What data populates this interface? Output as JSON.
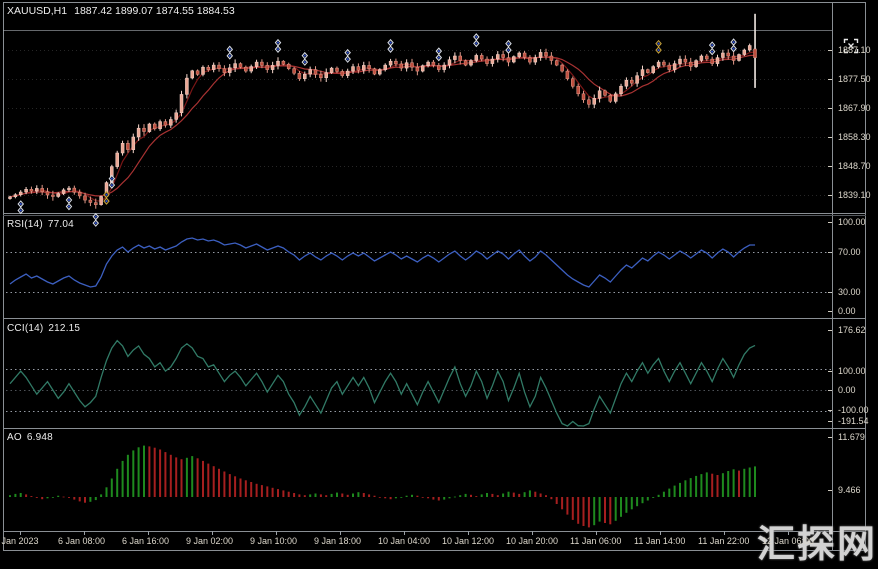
{
  "title_bar": {
    "symbol_period": "XAUUSD,H1",
    "ohlc": "1887.42 1899.07 1874.55 1884.53"
  },
  "watermark_text": "汇探网",
  "colors": {
    "background": "#000000",
    "frame": "#8a8f94",
    "axis_text": "#ded9cd",
    "candle_up_fill": "#eba795",
    "candle_up_stroke": "#f7d8cd",
    "candle_down_fill": "#bf4f3f",
    "candle_down_stroke": "#e09a8a",
    "ma_fast": "#7a1616",
    "ma_slow": "#a83232",
    "rsi_line": "#3c5fc0",
    "cci_line": "#317a66",
    "ao_up": "#1e8a1e",
    "ao_down": "#a61f1f",
    "level_line": "#aeb6c0",
    "object_line": "#aab0b6",
    "marker_silver": "#d9dee8",
    "marker_gold": "#caa43a",
    "marker_dot": "#2b4fd4"
  },
  "chart_data": [
    {
      "type": "candlestick",
      "panel": "price",
      "symbol": "XAUUSD",
      "timeframe": "H1",
      "ohlc_current": {
        "open": 1887.42,
        "high": 1899.07,
        "low": 1874.55,
        "close": 1884.53
      },
      "y_axis_labels": [
        "1887.10",
        "1877.50",
        "1867.90",
        "1858.30",
        "1848.70",
        "1839.10"
      ],
      "x_axis_labels": [
        "5 Jan 2023",
        "6 Jan 08:00",
        "6 Jan 16:00",
        "9 Jan 02:00",
        "9 Jan 10:00",
        "9 Jan 18:00",
        "10 Jan 04:00",
        "10 Jan 12:00",
        "10 Jan 20:00",
        "11 Jan 06:00",
        "11 Jan 14:00",
        "11 Jan 22:00",
        "12 Jan 06:00"
      ],
      "overlays": [
        "moving-average-fast",
        "moving-average-slow"
      ],
      "closes": [
        1838.5,
        1839.2,
        1840.1,
        1841.0,
        1840.4,
        1841.3,
        1840.2,
        1839.1,
        1838.6,
        1839.6,
        1840.8,
        1841.4,
        1840.0,
        1838.8,
        1837.4,
        1836.6,
        1835.9,
        1838.6,
        1843.2,
        1848.5,
        1853.0,
        1856.2,
        1854.1,
        1858.3,
        1861.2,
        1860.1,
        1862.6,
        1861.0,
        1863.4,
        1862.2,
        1864.1,
        1866.3,
        1872.4,
        1877.8,
        1880.2,
        1879.0,
        1881.4,
        1880.6,
        1882.1,
        1880.9,
        1879.6,
        1881.2,
        1882.6,
        1881.4,
        1880.1,
        1881.6,
        1883.1,
        1882.0,
        1880.6,
        1882.0,
        1883.4,
        1882.4,
        1880.9,
        1879.4,
        1877.6,
        1879.1,
        1880.6,
        1879.0,
        1877.9,
        1879.6,
        1881.1,
        1880.0,
        1878.6,
        1880.1,
        1881.6,
        1880.4,
        1882.0,
        1880.9,
        1879.1,
        1880.6,
        1882.1,
        1883.4,
        1882.5,
        1881.1,
        1882.9,
        1881.4,
        1880.1,
        1881.9,
        1883.1,
        1882.0,
        1880.6,
        1882.1,
        1883.9,
        1885.1,
        1883.6,
        1882.1,
        1883.6,
        1885.3,
        1884.1,
        1882.6,
        1884.1,
        1885.6,
        1884.6,
        1883.1,
        1884.9,
        1886.1,
        1884.6,
        1883.1,
        1884.6,
        1886.3,
        1885.1,
        1883.6,
        1882.1,
        1880.1,
        1877.6,
        1875.1,
        1872.6,
        1870.6,
        1869.1,
        1871.1,
        1873.6,
        1872.1,
        1870.1,
        1872.6,
        1875.1,
        1877.1,
        1876.1,
        1878.6,
        1880.6,
        1879.6,
        1881.6,
        1883.1,
        1882.1,
        1880.6,
        1882.6,
        1884.1,
        1883.1,
        1881.6,
        1883.6,
        1885.1,
        1884.1,
        1882.6,
        1884.6,
        1886.1,
        1885.1,
        1883.6,
        1885.6,
        1887.1,
        1888.6,
        1884.53
      ],
      "last_bar": {
        "open": 1887.42,
        "high": 1899.07,
        "low": 1874.55,
        "close": 1884.53
      },
      "signal_markers": [
        {
          "i": 2,
          "pos": "below",
          "style": "silver"
        },
        {
          "i": 11,
          "pos": "below",
          "style": "silver"
        },
        {
          "i": 16,
          "pos": "below",
          "style": "silver"
        },
        {
          "i": 18,
          "pos": "below",
          "style": "gold"
        },
        {
          "i": 19,
          "pos": "below",
          "style": "silver"
        },
        {
          "i": 41,
          "pos": "above",
          "style": "silver"
        },
        {
          "i": 50,
          "pos": "above",
          "style": "silver"
        },
        {
          "i": 55,
          "pos": "above",
          "style": "silver"
        },
        {
          "i": 63,
          "pos": "above",
          "style": "silver"
        },
        {
          "i": 71,
          "pos": "above",
          "style": "silver"
        },
        {
          "i": 80,
          "pos": "above",
          "style": "silver"
        },
        {
          "i": 87,
          "pos": "above",
          "style": "silver"
        },
        {
          "i": 93,
          "pos": "above",
          "style": "silver"
        },
        {
          "i": 121,
          "pos": "above",
          "style": "gold"
        },
        {
          "i": 131,
          "pos": "above",
          "style": "silver"
        },
        {
          "i": 135,
          "pos": "above",
          "style": "silver"
        }
      ]
    },
    {
      "type": "line",
      "name": "RSI(14)",
      "current": "77.04",
      "levels": [
        70,
        30
      ],
      "ylim": [
        0,
        100
      ],
      "y_axis_labels": [
        "100.00",
        "70.00",
        "30.00",
        "0.00"
      ],
      "values": [
        38,
        42,
        45,
        48,
        44,
        46,
        43,
        40,
        38,
        41,
        44,
        46,
        42,
        39,
        37,
        35,
        36,
        45,
        58,
        66,
        72,
        75,
        70,
        74,
        77,
        74,
        76,
        73,
        75,
        72,
        74,
        76,
        80,
        83,
        84,
        82,
        83,
        81,
        82,
        80,
        77,
        78,
        79,
        77,
        74,
        76,
        78,
        75,
        72,
        74,
        76,
        74,
        70,
        67,
        62,
        66,
        69,
        65,
        62,
        66,
        69,
        66,
        62,
        66,
        69,
        66,
        69,
        65,
        61,
        64,
        67,
        70,
        67,
        63,
        66,
        63,
        60,
        64,
        67,
        64,
        60,
        64,
        68,
        71,
        66,
        62,
        66,
        71,
        68,
        63,
        67,
        71,
        68,
        63,
        68,
        72,
        66,
        61,
        65,
        71,
        67,
        62,
        57,
        52,
        47,
        43,
        40,
        37,
        35,
        41,
        47,
        44,
        40,
        46,
        52,
        57,
        54,
        59,
        64,
        61,
        66,
        70,
        67,
        63,
        67,
        71,
        68,
        64,
        68,
        72,
        69,
        64,
        69,
        73,
        70,
        65,
        70,
        74,
        77,
        77.04
      ]
    },
    {
      "type": "line",
      "name": "CCI(14)",
      "current": "212.15",
      "levels": [
        100,
        0,
        -100
      ],
      "y_axis_labels": [
        "176.62",
        "100.00",
        "0.00",
        "-100.00",
        "-191.54"
      ],
      "values": [
        30,
        60,
        90,
        60,
        20,
        -20,
        10,
        40,
        0,
        -40,
        -10,
        30,
        -10,
        -50,
        -80,
        -60,
        -30,
        60,
        140,
        200,
        235,
        210,
        160,
        190,
        210,
        170,
        150,
        110,
        130,
        90,
        110,
        150,
        200,
        220,
        200,
        160,
        150,
        110,
        120,
        80,
        40,
        70,
        90,
        60,
        20,
        50,
        80,
        40,
        -10,
        30,
        70,
        40,
        -20,
        -60,
        -120,
        -80,
        -30,
        -70,
        -110,
        -50,
        10,
        40,
        -20,
        20,
        60,
        20,
        60,
        10,
        -60,
        -10,
        40,
        80,
        40,
        -20,
        30,
        -20,
        -70,
        -10,
        40,
        -10,
        -60,
        0,
        60,
        110,
        30,
        -30,
        20,
        90,
        40,
        -40,
        20,
        90,
        40,
        -50,
        10,
        80,
        -10,
        -80,
        -30,
        60,
        10,
        -50,
        -110,
        -160,
        -180,
        -150,
        -170,
        -190,
        -160,
        -90,
        -30,
        -70,
        -110,
        -40,
        30,
        80,
        40,
        90,
        130,
        80,
        120,
        150,
        90,
        40,
        90,
        130,
        80,
        30,
        80,
        130,
        90,
        40,
        100,
        150,
        110,
        60,
        120,
        170,
        200,
        212.15
      ]
    },
    {
      "type": "histogram",
      "name": "AO",
      "current": "6.948",
      "y_axis_labels": [
        "11.679",
        "9.466"
      ],
      "values": [
        0.4,
        0.7,
        0.9,
        0.6,
        0.2,
        -0.2,
        -0.5,
        -0.3,
        0.0,
        0.3,
        0.1,
        -0.2,
        -0.6,
        -1.0,
        -1.3,
        -1.1,
        -0.7,
        0.6,
        2.2,
        4.2,
        6.4,
        8.2,
        9.6,
        10.6,
        11.3,
        11.679,
        11.5,
        11.2,
        10.8,
        10.2,
        9.6,
        9.0,
        8.6,
        8.9,
        9.3,
        8.8,
        8.2,
        7.6,
        7.0,
        6.4,
        5.8,
        5.2,
        4.7,
        4.2,
        3.8,
        3.4,
        3.0,
        2.7,
        2.4,
        2.1,
        1.8,
        1.5,
        1.2,
        0.9,
        0.6,
        0.4,
        0.6,
        0.8,
        0.6,
        0.4,
        0.7,
        1.0,
        0.8,
        0.5,
        0.8,
        1.1,
        0.9,
        0.6,
        0.3,
        0.0,
        -0.3,
        -0.5,
        -0.3,
        0.0,
        0.3,
        0.5,
        0.3,
        0.0,
        -0.3,
        -0.6,
        -0.8,
        -0.6,
        -0.3,
        0.1,
        0.4,
        0.7,
        0.5,
        0.2,
        0.6,
        0.9,
        0.7,
        0.4,
        0.8,
        1.2,
        1.0,
        0.7,
        1.1,
        1.5,
        1.2,
        0.8,
        0.4,
        -0.5,
        -1.6,
        -2.8,
        -4.0,
        -5.2,
        -6.1,
        -6.6,
        -6.9,
        -6.4,
        -5.6,
        -5.9,
        -6.2,
        -5.4,
        -4.5,
        -3.6,
        -2.8,
        -2.1,
        -1.4,
        -0.8,
        -0.2,
        0.5,
        1.2,
        1.9,
        2.6,
        3.2,
        3.8,
        4.3,
        4.8,
        5.2,
        5.6,
        5.3,
        5.0,
        5.4,
        5.9,
        6.3,
        6.0,
        6.4,
        6.7,
        6.948
      ]
    }
  ]
}
